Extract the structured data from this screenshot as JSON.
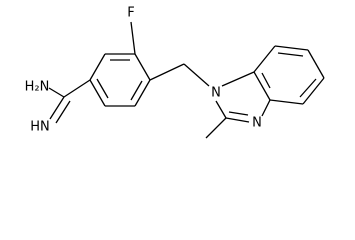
{
  "nodes": [
    {
      "label": "F"
    },
    {
      "label": "N"
    },
    {
      "label": "N"
    },
    {
      "label": "H₂N"
    },
    {
      "label": "HN"
    }
  ]
}
